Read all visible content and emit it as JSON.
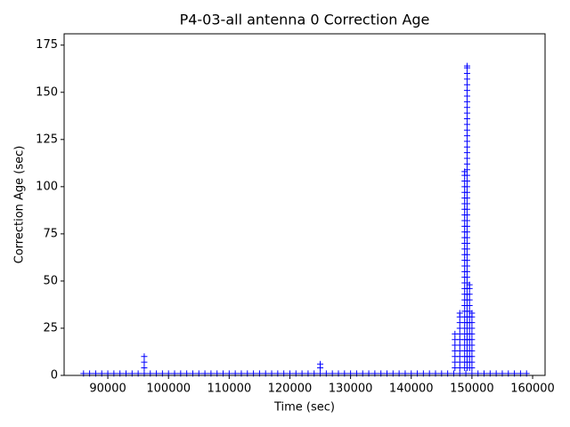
{
  "chart_data": {
    "type": "scatter",
    "title": "P4-03-all antenna 0 Correction Age",
    "x_label": "Time (sec)",
    "y_label": "Correction Age (sec)",
    "color": "#0000ff",
    "marker": "+",
    "xlim": [
      82800,
      162050
    ],
    "ylim": [
      0,
      181
    ],
    "xticks": [
      90000,
      100000,
      110000,
      120000,
      130000,
      140000,
      150000,
      160000
    ],
    "yticks": [
      0,
      25,
      50,
      75,
      100,
      125,
      150,
      175
    ],
    "x": [
      86000,
      87000,
      88000,
      89000,
      90000,
      91000,
      92000,
      93000,
      94000,
      95000,
      96000,
      97000,
      98000,
      99000,
      100000,
      101000,
      102000,
      103000,
      104000,
      105000,
      106000,
      107000,
      108000,
      109000,
      110000,
      111000,
      112000,
      113000,
      114000,
      115000,
      116000,
      117000,
      118000,
      119000,
      120000,
      121000,
      122000,
      123000,
      124000,
      125000,
      126000,
      127000,
      128000,
      129000,
      130000,
      131000,
      132000,
      133000,
      134000,
      135000,
      136000,
      137000,
      138000,
      139000,
      140000,
      141000,
      142000,
      143000,
      144000,
      145000,
      146000,
      147000,
      148000,
      149000,
      150000,
      151000,
      152000,
      153000,
      154000,
      155000,
      156000,
      157000,
      158000,
      159000,
      96000,
      96000,
      96000,
      125000,
      125000,
      147200,
      147200,
      147200,
      147200,
      147200,
      147200,
      147200,
      148000,
      148000,
      148000,
      148000,
      148000,
      148000,
      148000,
      148000,
      148000,
      148000,
      148000,
      148800,
      148800,
      148800,
      148800,
      148800,
      148800,
      148800,
      148800,
      148800,
      148800,
      148800,
      148800,
      148800,
      148800,
      148800,
      148800,
      148800,
      148800,
      148800,
      148800,
      148800,
      148800,
      148800,
      148800,
      148800,
      148800,
      148800,
      148800,
      148800,
      148800,
      148800,
      148800,
      148800,
      148800,
      148800,
      148800,
      149200,
      149200,
      149200,
      149200,
      149200,
      149200,
      149200,
      149200,
      149200,
      149200,
      149200,
      149200,
      149200,
      149200,
      149200,
      149200,
      149200,
      149200,
      149200,
      149200,
      149200,
      149200,
      149200,
      149200,
      149200,
      149200,
      149200,
      149200,
      149200,
      149200,
      149200,
      149200,
      149200,
      149200,
      149200,
      149200,
      149200,
      149200,
      149200,
      149200,
      149200,
      149200,
      149200,
      149200,
      149200,
      149200,
      149200,
      149200,
      149200,
      149200,
      149200,
      149200,
      149200,
      149200,
      149200,
      149600,
      149600,
      149600,
      149600,
      149600,
      149600,
      149600,
      149600,
      149600,
      149600,
      149600,
      149600,
      149600,
      149600,
      149600,
      149600,
      150000,
      150000,
      150000,
      150000,
      150000,
      150000,
      150000,
      150000,
      150000,
      150000,
      150000
    ],
    "y": [
      1,
      1,
      1,
      1,
      1,
      1,
      1,
      1,
      1,
      1,
      1,
      1,
      1,
      1,
      1,
      1,
      1,
      1,
      1,
      1,
      1,
      1,
      1,
      1,
      1,
      1,
      1,
      1,
      1,
      1,
      1,
      1,
      1,
      1,
      1,
      1,
      1,
      1,
      1,
      1,
      1,
      1,
      1,
      1,
      1,
      1,
      1,
      1,
      1,
      1,
      1,
      1,
      1,
      1,
      1,
      1,
      1,
      1,
      1,
      1,
      1,
      1,
      1,
      1,
      1,
      1,
      1,
      1,
      1,
      1,
      1,
      1,
      1,
      1,
      4,
      7,
      10,
      4,
      6,
      4,
      7,
      10,
      13,
      16,
      19,
      22,
      4,
      7,
      10,
      13,
      16,
      19,
      22,
      25,
      28,
      31,
      33,
      4,
      7,
      10,
      13,
      16,
      19,
      22,
      25,
      28,
      31,
      34,
      37,
      40,
      43,
      46,
      49,
      52,
      55,
      58,
      61,
      64,
      67,
      70,
      73,
      76,
      79,
      82,
      85,
      88,
      91,
      94,
      97,
      100,
      103,
      106,
      108,
      4,
      7,
      10,
      13,
      16,
      19,
      22,
      25,
      28,
      31,
      34,
      37,
      40,
      43,
      46,
      49,
      52,
      55,
      58,
      61,
      64,
      67,
      70,
      73,
      76,
      79,
      82,
      85,
      88,
      91,
      94,
      97,
      100,
      103,
      106,
      109,
      112,
      115,
      118,
      121,
      124,
      127,
      130,
      133,
      136,
      139,
      142,
      145,
      148,
      151,
      154,
      157,
      160,
      163,
      164,
      4,
      7,
      10,
      13,
      16,
      19,
      22,
      25,
      28,
      31,
      34,
      37,
      40,
      43,
      46,
      48,
      4,
      7,
      10,
      13,
      16,
      19,
      22,
      25,
      28,
      31,
      33
    ]
  }
}
